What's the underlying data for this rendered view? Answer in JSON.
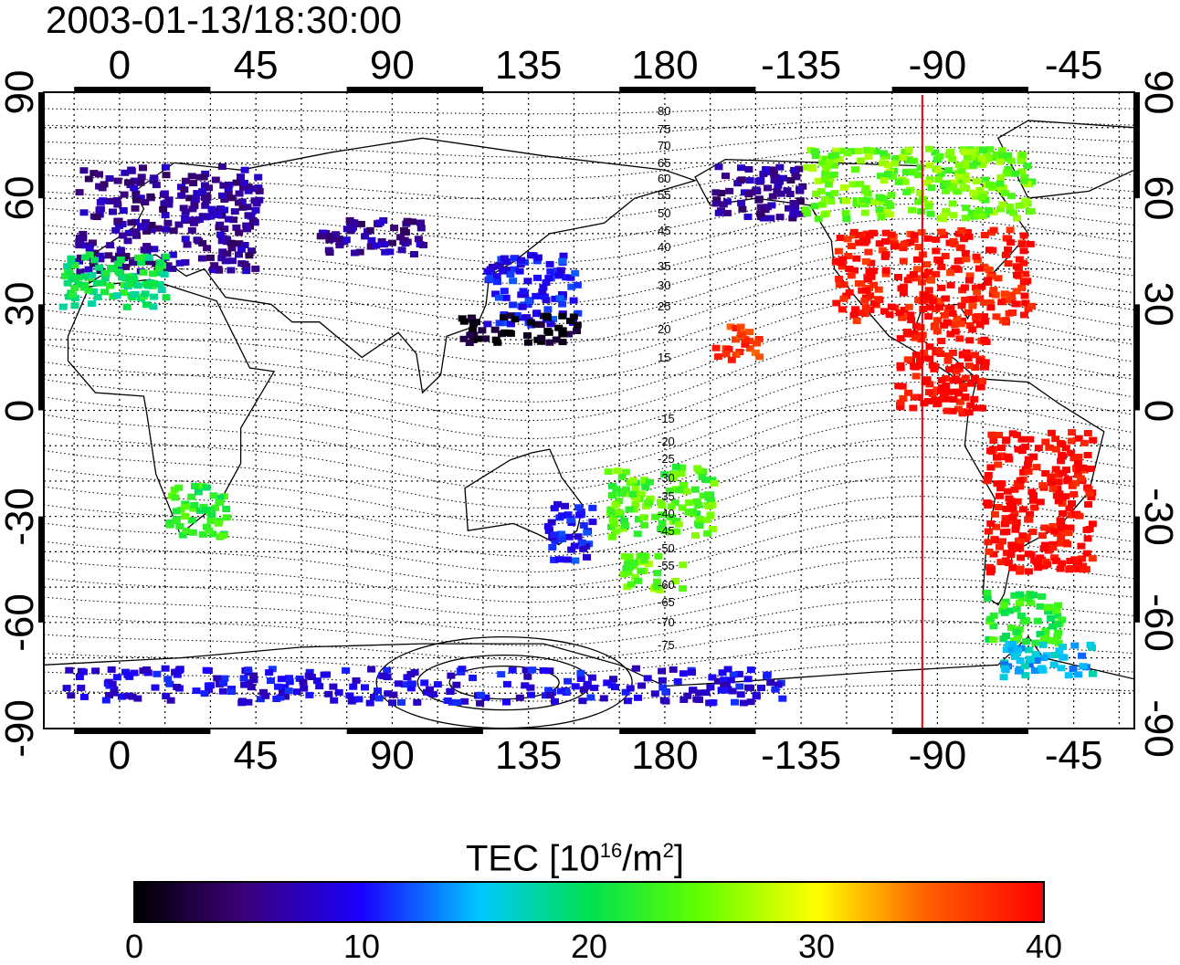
{
  "title": "2003-01-13/18:30:00",
  "lon_ticks": [
    "0",
    "45",
    "90",
    "135",
    "180",
    "-135",
    "-90",
    "-45"
  ],
  "lat_ticks": [
    "90",
    "60",
    "30",
    "0",
    "-30",
    "-60",
    "-90"
  ],
  "mlat_labels": [
    "80",
    "75",
    "70",
    "65",
    "60",
    "55",
    "50",
    "45",
    "40",
    "35",
    "30",
    "25",
    "20",
    "15",
    "-15",
    "-20",
    "-25",
    "-30",
    "-35",
    "-40",
    "-45",
    "-50",
    "-55",
    "-60",
    "-65",
    "-70",
    "-75"
  ],
  "colorbar": {
    "title_main": "TEC  [10",
    "title_exp": "16",
    "title_mid": "/m",
    "title_exp2": "2",
    "title_end": "]",
    "ticks": [
      "0",
      "10",
      "20",
      "30",
      "40"
    ],
    "range": [
      0,
      40
    ]
  },
  "map": {
    "lon_range_deg": [
      -25,
      335
    ],
    "lat_range_deg": [
      -90,
      90
    ],
    "meridian_marker_lon": -95,
    "marker_color": "#e00000"
  },
  "tec_regions": [
    {
      "name": "europe",
      "lon": [
        -15,
        45
      ],
      "lat": [
        40,
        70
      ],
      "tec": 6
    },
    {
      "name": "iberia-africa-north",
      "lon": [
        -20,
        15
      ],
      "lat": [
        30,
        45
      ],
      "tec": 20
    },
    {
      "name": "siberia",
      "lon": [
        65,
        100
      ],
      "lat": [
        45,
        55
      ],
      "tec": 6
    },
    {
      "name": "japan",
      "lon": [
        120,
        150
      ],
      "lat": [
        25,
        45
      ],
      "tec": 10
    },
    {
      "name": "china-south",
      "lon": [
        110,
        150
      ],
      "lat": [
        20,
        28
      ],
      "tec": 1
    },
    {
      "name": "alaska",
      "lon": [
        195,
        225
      ],
      "lat": [
        55,
        70
      ],
      "tec": 6
    },
    {
      "name": "canada-north",
      "lon": [
        225,
        300
      ],
      "lat": [
        55,
        75
      ],
      "tec": 25
    },
    {
      "name": "north-america",
      "lon": [
        235,
        300
      ],
      "lat": [
        25,
        52
      ],
      "tec": 39
    },
    {
      "name": "central-america",
      "lon": [
        255,
        285
      ],
      "lat": [
        0,
        25
      ],
      "tec": 40
    },
    {
      "name": "south-america",
      "lon": [
        285,
        320
      ],
      "lat": [
        -45,
        -5
      ],
      "tec": 40
    },
    {
      "name": "patagonia",
      "lon": [
        285,
        310
      ],
      "lat": [
        -65,
        -50
      ],
      "tec": 22
    },
    {
      "name": "antarctic-peninsula",
      "lon": [
        290,
        320
      ],
      "lat": [
        -75,
        -65
      ],
      "tec": 15
    },
    {
      "name": "south-africa",
      "lon": [
        15,
        35
      ],
      "lat": [
        -35,
        -20
      ],
      "tec": 22
    },
    {
      "name": "australia-east",
      "lon": [
        140,
        155
      ],
      "lat": [
        -42,
        -25
      ],
      "tec": 10
    },
    {
      "name": "pacific-sw",
      "lon": [
        160,
        195
      ],
      "lat": [
        -35,
        -15
      ],
      "tec": 24
    },
    {
      "name": "new-zealand",
      "lon": [
        165,
        185
      ],
      "lat": [
        -50,
        -40
      ],
      "tec": 25
    },
    {
      "name": "hawaii",
      "lon": [
        195,
        210
      ],
      "lat": [
        15,
        25
      ],
      "tec": 37
    },
    {
      "name": "antarctica-ring",
      "lon": [
        -20,
        220
      ],
      "lat": [
        -82,
        -72
      ],
      "tec": 9
    }
  ]
}
